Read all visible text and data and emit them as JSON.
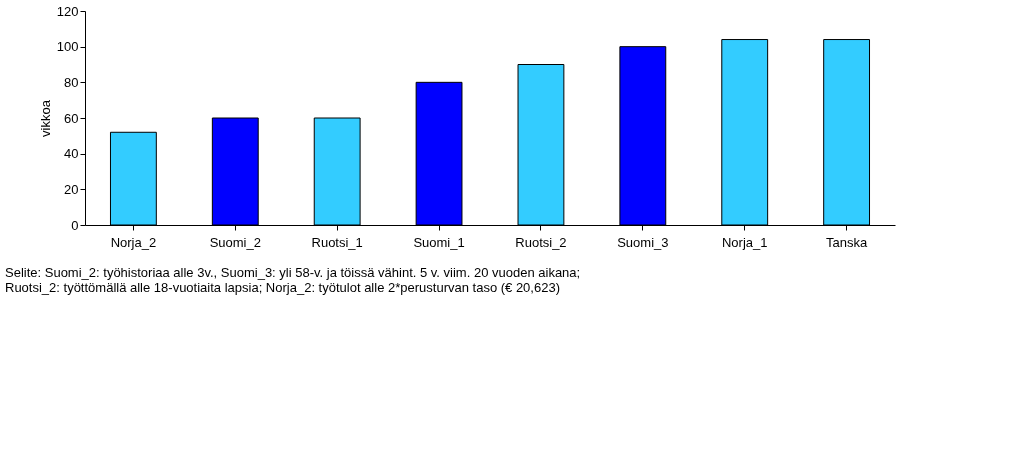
{
  "chart_data": {
    "type": "bar",
    "ylabel": "vikkoa",
    "categories": [
      "Norja_2",
      "Suomi_2",
      "Ruotsi_1",
      "Suomi_1",
      "Ruotsi_2",
      "Suomi_3",
      "Norja_1",
      "Tanska"
    ],
    "values": [
      52,
      60,
      60,
      80,
      90,
      100,
      104,
      104
    ],
    "colors": [
      "#33ccff",
      "#0000ff",
      "#33ccff",
      "#0000ff",
      "#33ccff",
      "#0000ff",
      "#33ccff",
      "#33ccff"
    ],
    "ylim": [
      0,
      120
    ],
    "yticks": [
      0,
      20,
      40,
      60,
      80,
      100,
      120
    ],
    "grid": false,
    "annotations": [
      "Selite: Suomi_2: työhistoriaa alle 3v., Suomi_3: yli 58-v. ja töissä vähint. 5 v. viim. 20 vuoden aikana;",
      "Ruotsi_2: työttömällä alle 18-vuotiaita lapsia; Norja_2: työtulot alle 2*perusturvan taso (€ 20,623)"
    ]
  }
}
